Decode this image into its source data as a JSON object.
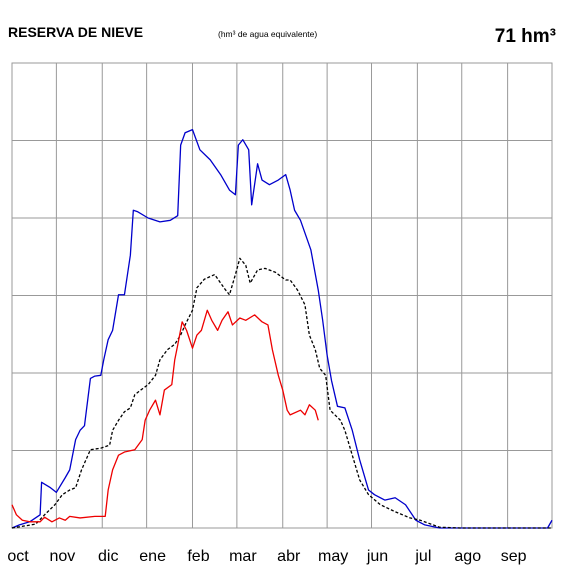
{
  "chart_data": {
    "type": "line",
    "title": "RESERVA DE NIEVE",
    "subtitle": "(hm³ de agua equivalente)",
    "total": "71 hm³",
    "xlim": [
      0,
      365
    ],
    "xticks": [
      {
        "value": 0,
        "label": "oct"
      },
      {
        "value": 30,
        "label": "nov"
      },
      {
        "value": 61,
        "label": "dic"
      },
      {
        "value": 91,
        "label": "ene"
      },
      {
        "value": 122,
        "label": "feb"
      },
      {
        "value": 152,
        "label": "mar"
      },
      {
        "value": 183,
        "label": "abr"
      },
      {
        "value": 213,
        "label": "may"
      },
      {
        "value": 243,
        "label": "jun"
      },
      {
        "value": 274,
        "label": "jul"
      },
      {
        "value": 304,
        "label": "ago"
      },
      {
        "value": 335,
        "label": "sep"
      }
    ],
    "ylim": [
      0,
      6
    ],
    "ygrid": [
      1,
      2,
      3,
      4,
      5
    ],
    "grid": true,
    "series": [
      {
        "color": "#0000cc",
        "dash": false,
        "x": [
          0,
          5,
          12,
          19,
          20,
          26,
          30,
          36,
          39,
          43,
          46,
          49,
          53,
          56,
          60,
          62,
          65,
          68,
          72,
          76,
          80,
          82,
          85,
          92,
          100,
          107,
          112,
          114,
          117,
          122,
          127,
          134,
          141,
          147,
          151,
          153,
          156,
          160,
          162,
          166,
          169,
          174,
          180,
          185,
          188,
          191,
          195,
          202,
          207,
          210,
          213,
          216,
          220,
          225,
          230,
          235,
          241,
          245,
          252,
          259,
          266,
          273,
          279,
          289,
          362,
          365
        ],
        "values": [
          0,
          0.04,
          0.08,
          0.17,
          0.59,
          0.52,
          0.46,
          0.65,
          0.75,
          1.14,
          1.26,
          1.32,
          1.93,
          1.96,
          1.97,
          2.17,
          2.43,
          2.55,
          3.01,
          3.01,
          3.52,
          4.1,
          4.08,
          4.0,
          3.95,
          3.97,
          4.03,
          4.94,
          5.1,
          5.14,
          4.88,
          4.75,
          4.56,
          4.36,
          4.3,
          4.94,
          5.01,
          4.88,
          4.17,
          4.7,
          4.49,
          4.43,
          4.49,
          4.56,
          4.36,
          4.1,
          3.97,
          3.59,
          3.07,
          2.68,
          2.23,
          1.9,
          1.57,
          1.55,
          1.26,
          0.88,
          0.49,
          0.43,
          0.36,
          0.39,
          0.3,
          0.1,
          0.04,
          0,
          0,
          0.1
        ]
      },
      {
        "color": "#000000",
        "dash": true,
        "x": [
          0,
          16,
          22,
          29,
          34,
          39,
          43,
          47,
          53,
          60,
          66,
          68,
          72,
          76,
          80,
          83,
          87,
          92,
          97,
          100,
          105,
          110,
          114,
          117,
          122,
          125,
          130,
          137,
          144,
          147,
          151,
          154,
          158,
          161,
          166,
          171,
          178,
          185,
          188,
          193,
          198,
          201,
          205,
          208,
          212,
          215,
          222,
          225,
          230,
          235,
          241,
          249,
          259,
          269,
          276,
          289,
          303,
          365
        ],
        "values": [
          0,
          0.05,
          0.17,
          0.3,
          0.43,
          0.49,
          0.52,
          0.75,
          1.01,
          1.03,
          1.07,
          1.26,
          1.39,
          1.5,
          1.55,
          1.72,
          1.78,
          1.85,
          1.97,
          2.17,
          2.3,
          2.37,
          2.49,
          2.62,
          2.81,
          3.1,
          3.21,
          3.27,
          3.08,
          3.01,
          3.27,
          3.48,
          3.39,
          3.16,
          3.33,
          3.35,
          3.3,
          3.2,
          3.2,
          3.07,
          2.88,
          2.49,
          2.3,
          2.06,
          1.97,
          1.52,
          1.39,
          1.26,
          0.94,
          0.62,
          0.43,
          0.3,
          0.21,
          0.13,
          0.1,
          0.01,
          0,
          0
        ]
      },
      {
        "color": "#ee0000",
        "dash": false,
        "x": [
          0,
          3,
          7,
          12,
          19,
          22,
          27,
          32,
          36,
          39,
          46,
          56,
          63,
          65,
          68,
          72,
          76,
          83,
          88,
          90,
          93,
          97,
          100,
          103,
          108,
          110,
          112,
          115,
          118,
          122,
          125,
          128,
          132,
          135,
          139,
          142,
          146,
          149,
          154,
          158,
          164,
          169,
          173,
          176,
          180,
          183,
          186,
          188,
          195,
          198,
          201,
          205,
          207
        ],
        "values": [
          0.3,
          0.17,
          0.1,
          0.08,
          0.08,
          0.14,
          0.08,
          0.13,
          0.1,
          0.15,
          0.13,
          0.15,
          0.15,
          0.49,
          0.75,
          0.94,
          0.98,
          1.01,
          1.14,
          1.39,
          1.52,
          1.65,
          1.46,
          1.78,
          1.85,
          2.17,
          2.36,
          2.66,
          2.55,
          2.32,
          2.49,
          2.55,
          2.81,
          2.68,
          2.55,
          2.68,
          2.79,
          2.62,
          2.71,
          2.68,
          2.75,
          2.66,
          2.62,
          2.3,
          1.97,
          1.78,
          1.52,
          1.46,
          1.52,
          1.46,
          1.59,
          1.52,
          1.39
        ]
      }
    ]
  }
}
